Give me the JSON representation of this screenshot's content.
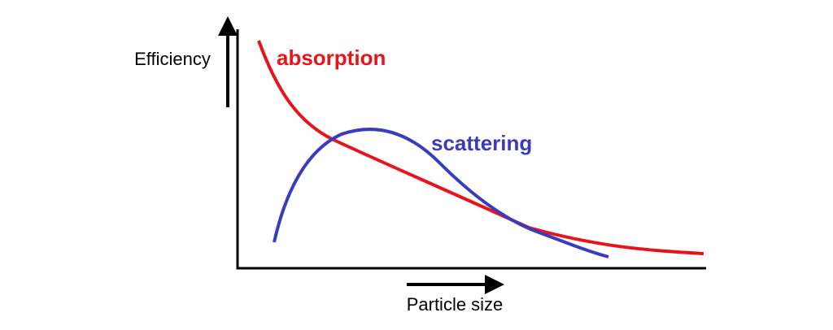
{
  "labels": {
    "y_axis": "Efficiency",
    "x_axis": "Particle size"
  },
  "curves": [
    {
      "label": "absorption",
      "color": "#e8141b"
    },
    {
      "label": "scattering",
      "color": "#3b3bbf"
    }
  ]
}
